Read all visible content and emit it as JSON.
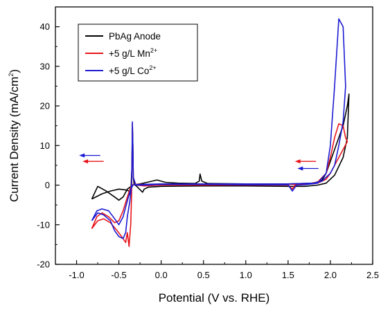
{
  "chart_data": {
    "type": "line",
    "title": "",
    "xlabel": "Potential (V vs. RHE)",
    "ylabel": {
      "main": "Current Density (mA/cm",
      "sup": "2",
      "close": ")"
    },
    "xlim": [
      -1.25,
      2.5
    ],
    "ylim": [
      -20,
      45
    ],
    "xticks": [
      -1.0,
      -0.5,
      0.0,
      0.5,
      1.0,
      1.5,
      2.0,
      2.5
    ],
    "xtick_labels": [
      "-1.0",
      "-0.5",
      "0.0",
      "0.5",
      "1.0",
      "1.5",
      "2.0",
      "2.5"
    ],
    "yticks": [
      -20,
      -10,
      0,
      10,
      20,
      30,
      40
    ],
    "ytick_labels": [
      "-20",
      "-10",
      "0",
      "10",
      "20",
      "30",
      "40"
    ],
    "grid": false,
    "legend_position": "top-left",
    "series": [
      {
        "name": "PbAg Anode",
        "name_sup": "",
        "color": "#000000",
        "points": [
          [
            -0.82,
            -3.5
          ],
          [
            -0.7,
            -2.2
          ],
          [
            -0.6,
            -1.5
          ],
          [
            -0.5,
            -1.0
          ],
          [
            -0.42,
            -1.2
          ],
          [
            -0.38,
            -1.5
          ],
          [
            -0.36,
            -2.5
          ],
          [
            -0.345,
            5
          ],
          [
            -0.34,
            14.8
          ],
          [
            -0.335,
            10
          ],
          [
            -0.33,
            2
          ],
          [
            -0.32,
            0.2
          ],
          [
            -0.28,
            -0.5
          ],
          [
            -0.22,
            -1.8
          ],
          [
            -0.2,
            -1.0
          ],
          [
            -0.15,
            -0.5
          ],
          [
            0.0,
            -0.3
          ],
          [
            0.5,
            -0.2
          ],
          [
            1.0,
            -0.2
          ],
          [
            1.5,
            -0.3
          ],
          [
            1.7,
            -0.3
          ],
          [
            1.85,
            0
          ],
          [
            1.95,
            0.5
          ],
          [
            2.05,
            2.5
          ],
          [
            2.15,
            7
          ],
          [
            2.2,
            12
          ],
          [
            2.22,
            23
          ],
          [
            2.2,
            20
          ],
          [
            2.15,
            15
          ],
          [
            2.1,
            12
          ],
          [
            2.05,
            9
          ],
          [
            2.0,
            6
          ],
          [
            1.95,
            3
          ],
          [
            1.9,
            1.2
          ],
          [
            1.8,
            0.5
          ],
          [
            1.5,
            0.3
          ],
          [
            1.0,
            0.3
          ],
          [
            0.55,
            0.4
          ],
          [
            0.48,
            1.0
          ],
          [
            0.46,
            2.8
          ],
          [
            0.45,
            1.0
          ],
          [
            0.4,
            0.4
          ],
          [
            0.2,
            0.5
          ],
          [
            0.05,
            0.7
          ],
          [
            -0.05,
            1.3
          ],
          [
            -0.15,
            0.8
          ],
          [
            -0.25,
            0.3
          ],
          [
            -0.33,
            0.1
          ],
          [
            -0.4,
            -1.0
          ],
          [
            -0.45,
            -3.0
          ],
          [
            -0.5,
            -3.8
          ],
          [
            -0.55,
            -3.0
          ],
          [
            -0.65,
            -1.5
          ],
          [
            -0.75,
            -0.3
          ],
          [
            -0.82,
            -3.5
          ]
        ]
      },
      {
        "name": "+5 g/L Mn",
        "name_sup": "2+",
        "color": "#e8141a",
        "points": [
          [
            -0.82,
            -11
          ],
          [
            -0.75,
            -9
          ],
          [
            -0.68,
            -8.5
          ],
          [
            -0.6,
            -9.5
          ],
          [
            -0.52,
            -11.5
          ],
          [
            -0.45,
            -13.5
          ],
          [
            -0.42,
            -14.5
          ],
          [
            -0.4,
            -12
          ],
          [
            -0.38,
            -15.5
          ],
          [
            -0.36,
            -10
          ],
          [
            -0.35,
            -3
          ],
          [
            -0.345,
            5
          ],
          [
            -0.34,
            15.5
          ],
          [
            -0.335,
            10
          ],
          [
            -0.33,
            2
          ],
          [
            -0.3,
            0
          ],
          [
            -0.2,
            -0.2
          ],
          [
            0.0,
            0
          ],
          [
            0.5,
            0
          ],
          [
            1.0,
            0
          ],
          [
            1.5,
            0
          ],
          [
            1.55,
            -1.0
          ],
          [
            1.58,
            0
          ],
          [
            1.7,
            0.2
          ],
          [
            1.85,
            0.8
          ],
          [
            1.95,
            3
          ],
          [
            2.0,
            7
          ],
          [
            2.05,
            12
          ],
          [
            2.1,
            15.5
          ],
          [
            2.15,
            15
          ],
          [
            2.18,
            12
          ],
          [
            2.2,
            11
          ],
          [
            2.15,
            9
          ],
          [
            2.1,
            7
          ],
          [
            2.05,
            5
          ],
          [
            2.0,
            3
          ],
          [
            1.95,
            1.5
          ],
          [
            1.85,
            0.5
          ],
          [
            1.7,
            0.3
          ],
          [
            1.5,
            0.2
          ],
          [
            1.0,
            0.2
          ],
          [
            0.5,
            0.2
          ],
          [
            0.0,
            0.2
          ],
          [
            -0.2,
            0.2
          ],
          [
            -0.33,
            0.2
          ],
          [
            -0.36,
            -0.5
          ],
          [
            -0.4,
            -3.0
          ],
          [
            -0.45,
            -6.5
          ],
          [
            -0.5,
            -9.0
          ],
          [
            -0.55,
            -9.5
          ],
          [
            -0.62,
            -8.0
          ],
          [
            -0.7,
            -7.0
          ],
          [
            -0.76,
            -8.0
          ],
          [
            -0.82,
            -11
          ]
        ]
      },
      {
        "name": "+5 g/L Co",
        "name_sup": "2+",
        "color": "#1a1ad2",
        "points": [
          [
            -0.82,
            -9
          ],
          [
            -0.75,
            -7
          ],
          [
            -0.68,
            -7.5
          ],
          [
            -0.6,
            -9
          ],
          [
            -0.55,
            -11.5
          ],
          [
            -0.5,
            -13.0
          ],
          [
            -0.45,
            -13.5
          ],
          [
            -0.42,
            -12
          ],
          [
            -0.4,
            -8
          ],
          [
            -0.37,
            -4
          ],
          [
            -0.35,
            0
          ],
          [
            -0.345,
            6
          ],
          [
            -0.34,
            16
          ],
          [
            -0.335,
            10
          ],
          [
            -0.33,
            2
          ],
          [
            -0.3,
            0
          ],
          [
            -0.2,
            0
          ],
          [
            0.0,
            0.2
          ],
          [
            0.5,
            0.2
          ],
          [
            1.0,
            0.1
          ],
          [
            1.5,
            0.1
          ],
          [
            1.55,
            -1.5
          ],
          [
            1.6,
            0
          ],
          [
            1.7,
            0.1
          ],
          [
            1.85,
            0.5
          ],
          [
            1.95,
            3
          ],
          [
            2.0,
            10
          ],
          [
            2.05,
            25
          ],
          [
            2.1,
            42
          ],
          [
            2.15,
            40
          ],
          [
            2.18,
            25
          ],
          [
            2.15,
            16
          ],
          [
            2.1,
            10
          ],
          [
            2.05,
            5
          ],
          [
            2.0,
            3
          ],
          [
            1.9,
            1.0
          ],
          [
            1.8,
            0.5
          ],
          [
            1.5,
            0.3
          ],
          [
            1.0,
            0.3
          ],
          [
            0.5,
            0.3
          ],
          [
            0.0,
            0.3
          ],
          [
            -0.2,
            0.2
          ],
          [
            -0.33,
            0.1
          ],
          [
            -0.36,
            -1.0
          ],
          [
            -0.4,
            -4.0
          ],
          [
            -0.45,
            -8.0
          ],
          [
            -0.5,
            -10.0
          ],
          [
            -0.55,
            -8.5
          ],
          [
            -0.62,
            -6.5
          ],
          [
            -0.7,
            -6.0
          ],
          [
            -0.76,
            -6.5
          ],
          [
            -0.82,
            -9
          ]
        ]
      }
    ],
    "annotations": [
      {
        "type": "arrow",
        "direction": "left",
        "color": "#1a1ad2",
        "x1": -0.72,
        "x2": -0.97,
        "y": 7.5
      },
      {
        "type": "arrow",
        "direction": "left",
        "color": "#e8141a",
        "x1": -0.68,
        "x2": -0.93,
        "y": 6.0
      },
      {
        "type": "arrow",
        "direction": "left",
        "color": "#e8141a",
        "x1": 1.83,
        "x2": 1.58,
        "y": 6.0
      },
      {
        "type": "arrow",
        "direction": "left",
        "color": "#1a1ad2",
        "x1": 1.86,
        "x2": 1.61,
        "y": 4.2
      }
    ]
  }
}
